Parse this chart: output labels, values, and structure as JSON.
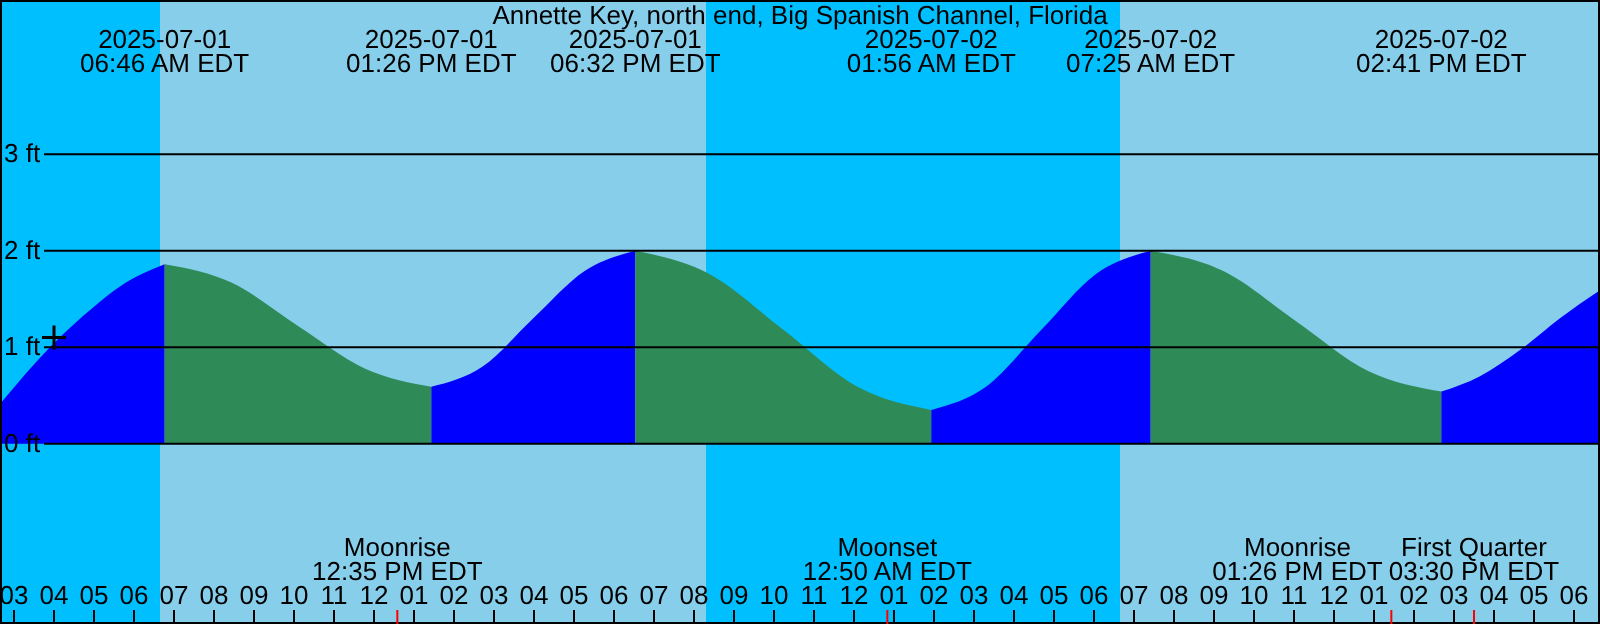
{
  "chart_data": {
    "type": "area",
    "title": "Annette Key, north end, Big Spanish Channel, Florida",
    "xlim": [
      "2025-07-01T02:39",
      "2025-07-02T18:39"
    ],
    "ylim": [
      -1.87,
      4.6
    ],
    "yticks": [
      {
        "value": 0,
        "label": "0 ft"
      },
      {
        "value": 1,
        "label": "1 ft"
      },
      {
        "value": 2,
        "label": "2 ft"
      },
      {
        "value": 3,
        "label": "3 ft"
      }
    ],
    "xticks": [
      {
        "value": "2025-07-01T03:00",
        "label": "03"
      },
      {
        "value": "2025-07-01T04:00",
        "label": "04"
      },
      {
        "value": "2025-07-01T05:00",
        "label": "05"
      },
      {
        "value": "2025-07-01T06:00",
        "label": "06"
      },
      {
        "value": "2025-07-01T07:00",
        "label": "07"
      },
      {
        "value": "2025-07-01T08:00",
        "label": "08"
      },
      {
        "value": "2025-07-01T09:00",
        "label": "09"
      },
      {
        "value": "2025-07-01T10:00",
        "label": "10"
      },
      {
        "value": "2025-07-01T11:00",
        "label": "11"
      },
      {
        "value": "2025-07-01T12:00",
        "label": "12"
      },
      {
        "value": "2025-07-01T12:35",
        "label": null
      },
      {
        "value": "2025-07-01T13:00",
        "label": "01"
      },
      {
        "value": "2025-07-01T14:00",
        "label": "02"
      },
      {
        "value": "2025-07-01T15:00",
        "label": "03"
      },
      {
        "value": "2025-07-01T16:00",
        "label": "04"
      },
      {
        "value": "2025-07-01T17:00",
        "label": "05"
      },
      {
        "value": "2025-07-01T18:00",
        "label": "06"
      },
      {
        "value": "2025-07-01T19:00",
        "label": "07"
      },
      {
        "value": "2025-07-01T20:00",
        "label": "08"
      },
      {
        "value": "2025-07-01T21:00",
        "label": "09"
      },
      {
        "value": "2025-07-01T22:00",
        "label": "10"
      },
      {
        "value": "2025-07-01T23:00",
        "label": "11"
      },
      {
        "value": "2025-07-02T00:00",
        "label": "12"
      },
      {
        "value": "2025-07-02T00:50",
        "label": null
      },
      {
        "value": "2025-07-02T01:00",
        "label": "01"
      },
      {
        "value": "2025-07-02T02:00",
        "label": "02"
      },
      {
        "value": "2025-07-02T03:00",
        "label": "03"
      },
      {
        "value": "2025-07-02T04:00",
        "label": "04"
      },
      {
        "value": "2025-07-02T05:00",
        "label": "05"
      },
      {
        "value": "2025-07-02T06:00",
        "label": "06"
      },
      {
        "value": "2025-07-02T07:00",
        "label": "07"
      },
      {
        "value": "2025-07-02T08:00",
        "label": "08"
      },
      {
        "value": "2025-07-02T09:00",
        "label": "09"
      },
      {
        "value": "2025-07-02T10:00",
        "label": "10"
      },
      {
        "value": "2025-07-02T11:00",
        "label": "11"
      },
      {
        "value": "2025-07-02T12:00",
        "label": "12"
      },
      {
        "value": "2025-07-02T13:00",
        "label": "01"
      },
      {
        "value": "2025-07-02T13:26",
        "label": null
      },
      {
        "value": "2025-07-02T14:00",
        "label": "02"
      },
      {
        "value": "2025-07-02T15:00",
        "label": "03"
      },
      {
        "value": "2025-07-02T15:30",
        "label": null
      },
      {
        "value": "2025-07-02T16:00",
        "label": "04"
      },
      {
        "value": "2025-07-02T17:00",
        "label": "05"
      },
      {
        "value": "2025-07-02T18:00",
        "label": "06"
      }
    ],
    "grid": "y",
    "bands": [
      {
        "axis": "x",
        "from": "2025-07-01T02:39",
        "to": "2025-07-01T06:39",
        "color": "#00bfff"
      },
      {
        "axis": "x",
        "from": "2025-07-01T06:39",
        "to": "2025-07-01T20:18",
        "color": "#87ceeb"
      },
      {
        "axis": "x",
        "from": "2025-07-01T20:18",
        "to": "2025-07-02T06:39",
        "color": "#00bfff"
      },
      {
        "axis": "x",
        "from": "2025-07-02T06:39",
        "to": "2025-07-02T18:39",
        "color": "#87ceeb"
      }
    ],
    "series": [
      {
        "color": "#0000ff",
        "x": [
          "2025-07-01T02:39",
          "2025-07-01T03:54",
          "2025-07-01T05:00",
          "2025-07-01T05:39",
          "2025-07-01T06:46"
        ],
        "values": [
          0.41,
          1.0,
          1.42,
          1.63,
          1.86
        ]
      },
      {
        "color": "#2e8b57",
        "x": [
          "2025-07-01T06:46",
          "2025-07-01T08:26",
          "2025-07-01T10:06",
          "2025-07-01T11:46",
          "2025-07-01T13:26"
        ],
        "values": [
          1.86,
          1.67,
          1.22,
          0.78,
          0.59
        ]
      },
      {
        "color": "#0000ff",
        "x": [
          "2025-07-01T13:26",
          "2025-07-01T14:43",
          "2025-07-01T15:59",
          "2025-07-01T17:16",
          "2025-07-01T18:32"
        ],
        "values": [
          0.59,
          0.8,
          1.3,
          1.79,
          2.0
        ]
      },
      {
        "color": "#2e8b57",
        "x": [
          "2025-07-01T18:32",
          "2025-07-01T20:23",
          "2025-07-01T22:14",
          "2025-07-02T00:05",
          "2025-07-02T01:56"
        ],
        "values": [
          2.0,
          1.76,
          1.18,
          0.59,
          0.35
        ]
      },
      {
        "color": "#0000ff",
        "x": [
          "2025-07-02T01:56",
          "2025-07-02T03:18",
          "2025-07-02T04:41",
          "2025-07-02T06:03",
          "2025-07-02T07:25"
        ],
        "values": [
          0.35,
          0.59,
          1.18,
          1.76,
          2.0
        ]
      },
      {
        "color": "#2e8b57",
        "x": [
          "2025-07-02T07:25",
          "2025-07-02T09:14",
          "2025-07-02T11:03",
          "2025-07-02T12:52",
          "2025-07-02T14:41"
        ],
        "values": [
          2.0,
          1.79,
          1.27,
          0.75,
          0.54
        ]
      },
      {
        "color": "#0000ff",
        "x": [
          "2025-07-02T14:41",
          "2025-07-02T15:39",
          "2025-07-02T16:39",
          "2025-07-02T17:39",
          "2025-07-02T18:39"
        ],
        "values": [
          0.54,
          0.7,
          0.97,
          1.3,
          1.59
        ]
      },
      {
        "type": "scatter",
        "marker": "cross",
        "color": "#000000",
        "x": [
          "2025-07-01T04:00"
        ],
        "values": [
          1.1
        ]
      }
    ],
    "annotations": [
      "2025-07-01\n06:46 AM EDT",
      "2025-07-01\n01:26 PM EDT",
      "2025-07-01\n06:32 PM EDT",
      "2025-07-02\n01:56 AM EDT",
      "2025-07-02\n07:25 AM EDT",
      "2025-07-02\n02:41 PM EDT",
      "Moonrise\n12:35 PM EDT",
      "Moonset\n12:50 AM EDT",
      "Moonrise\n01:26 PM EDT",
      "First Quarter\n03:30 PM EDT"
    ]
  }
}
